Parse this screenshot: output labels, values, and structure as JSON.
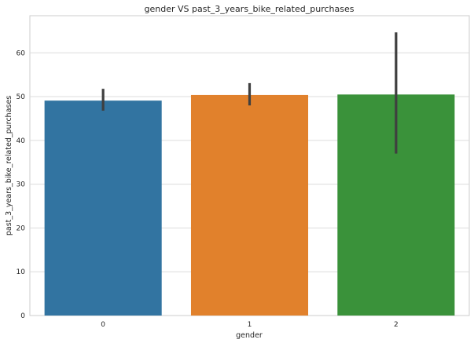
{
  "chart_data": {
    "type": "bar",
    "title": "gender VS past_3_years_bike_related_purchases",
    "xlabel": "gender",
    "ylabel": "past_3_years_bike_related_purchases",
    "categories": [
      "0",
      "1",
      "2"
    ],
    "values": [
      49.1,
      50.4,
      50.5
    ],
    "error_bars": [
      {
        "low": 46.8,
        "high": 51.8
      },
      {
        "low": 48.0,
        "high": 53.1
      },
      {
        "low": 37.0,
        "high": 64.7
      }
    ],
    "colors": [
      "#3274a1",
      "#e1812c",
      "#3a923a"
    ],
    "ylim": [
      0,
      68.5
    ],
    "yticks": [
      0,
      10,
      20,
      30,
      40,
      50,
      60
    ],
    "grid": true,
    "legend": "none"
  }
}
